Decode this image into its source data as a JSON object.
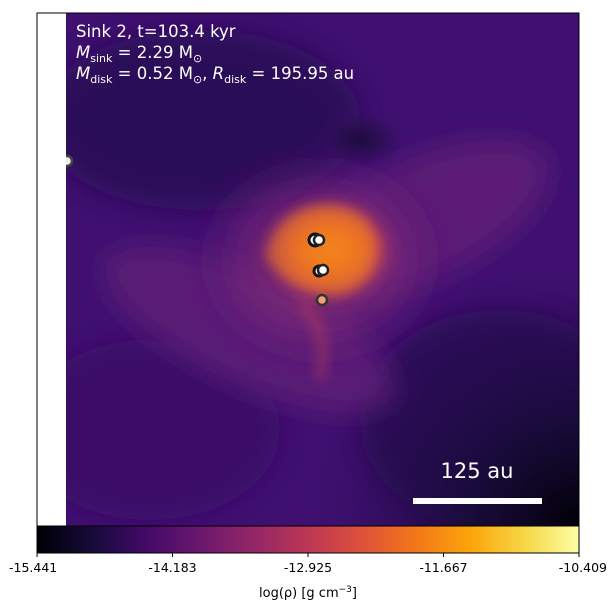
{
  "annotations": {
    "line1": "Sink 2, t=103.4 kyr",
    "line2_label": "M",
    "line2_sub": "sink",
    "line2_value": " = 2.29 M",
    "line2_unit_sub": "⊙",
    "line3_label": "M",
    "line3_sub": "disk",
    "line3_value": " = 0.52 M",
    "line3_unit_sub": "⊙",
    "line3_sep": ", ",
    "line3_r_label": "R",
    "line3_r_sub": "disk",
    "line3_r_value": " = 195.95 au"
  },
  "scale_bar": {
    "label": "125 au"
  },
  "colorbar": {
    "ticks": [
      "-15.441",
      "-14.183",
      "-12.925",
      "-11.667",
      "-10.409"
    ],
    "label_prefix": "log(ρ) [g cm",
    "label_exp": "−3",
    "label_suffix": "]"
  },
  "colors": {
    "accent": "#f07a1f",
    "background_purple": "#4a1174",
    "dark": "#000004"
  }
}
